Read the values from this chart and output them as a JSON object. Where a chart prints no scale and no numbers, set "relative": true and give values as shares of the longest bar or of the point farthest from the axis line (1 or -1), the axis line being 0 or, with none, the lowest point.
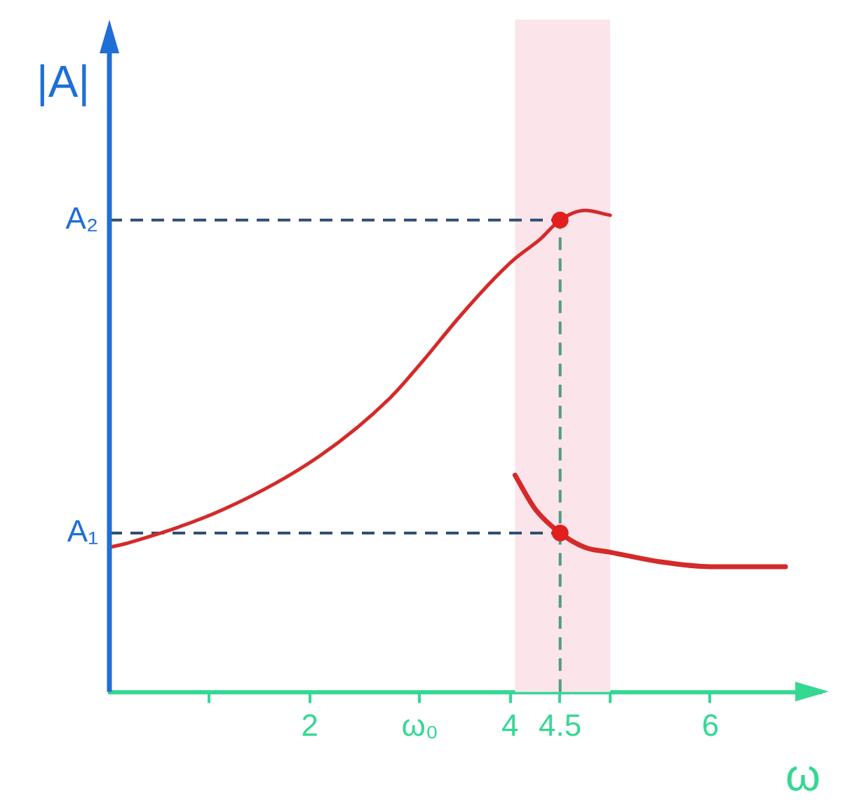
{
  "chart_data": {
    "type": "line",
    "xlabel": "ω",
    "ylabel": "|A|",
    "relative": true,
    "xlim": [
      0,
      7.1
    ],
    "xticks": [
      {
        "value": 1,
        "label": null
      },
      2,
      {
        "value": 3.1,
        "label": "ω₀"
      },
      4,
      4.5,
      {
        "value": 5,
        "label": null
      },
      6
    ],
    "series": [
      {
        "color": "#d42a2a",
        "x": [
          0,
          0.2,
          1.15,
          2.1,
          2.8,
          3.1,
          3.5,
          3.85,
          4.05,
          4.3,
          4.5,
          4.75,
          5.0
        ],
        "values": [
          0.3,
          0.31,
          0.38,
          0.49,
          0.61,
          0.68,
          0.78,
          0.86,
          0.9,
          0.94,
          0.98,
          1.0,
          0.99
        ]
      },
      {
        "color": "#d42a2a",
        "x": [
          4.05,
          4.25,
          4.5,
          4.75,
          5.0,
          5.5,
          6.0,
          6.75
        ],
        "values": [
          0.45,
          0.38,
          0.33,
          0.3,
          0.29,
          0.27,
          0.26,
          0.26
        ]
      },
      {
        "type": "scatter",
        "color": "#e0201e",
        "marker": "circle",
        "x": [
          4.5,
          4.5
        ],
        "values": [
          0.98,
          0.33
        ]
      }
    ],
    "ref_lines": [
      {
        "axis": "y",
        "value": 0.98,
        "label": "A₂",
        "color": "#2f4f74",
        "line_style": "dashed"
      },
      {
        "axis": "y",
        "value": 0.33,
        "label": "A₁",
        "color": "#2f4f74",
        "line_style": "dashed"
      },
      {
        "axis": "x",
        "value": 4.5,
        "color": "#4f9a83",
        "line_style": "dashed"
      }
    ],
    "bands": [
      {
        "axis": "x",
        "from": 4.05,
        "to": 5.0,
        "color": "#fbe4ea"
      }
    ],
    "marker": "none",
    "line_style": "solid",
    "grid": false,
    "legend": false
  }
}
